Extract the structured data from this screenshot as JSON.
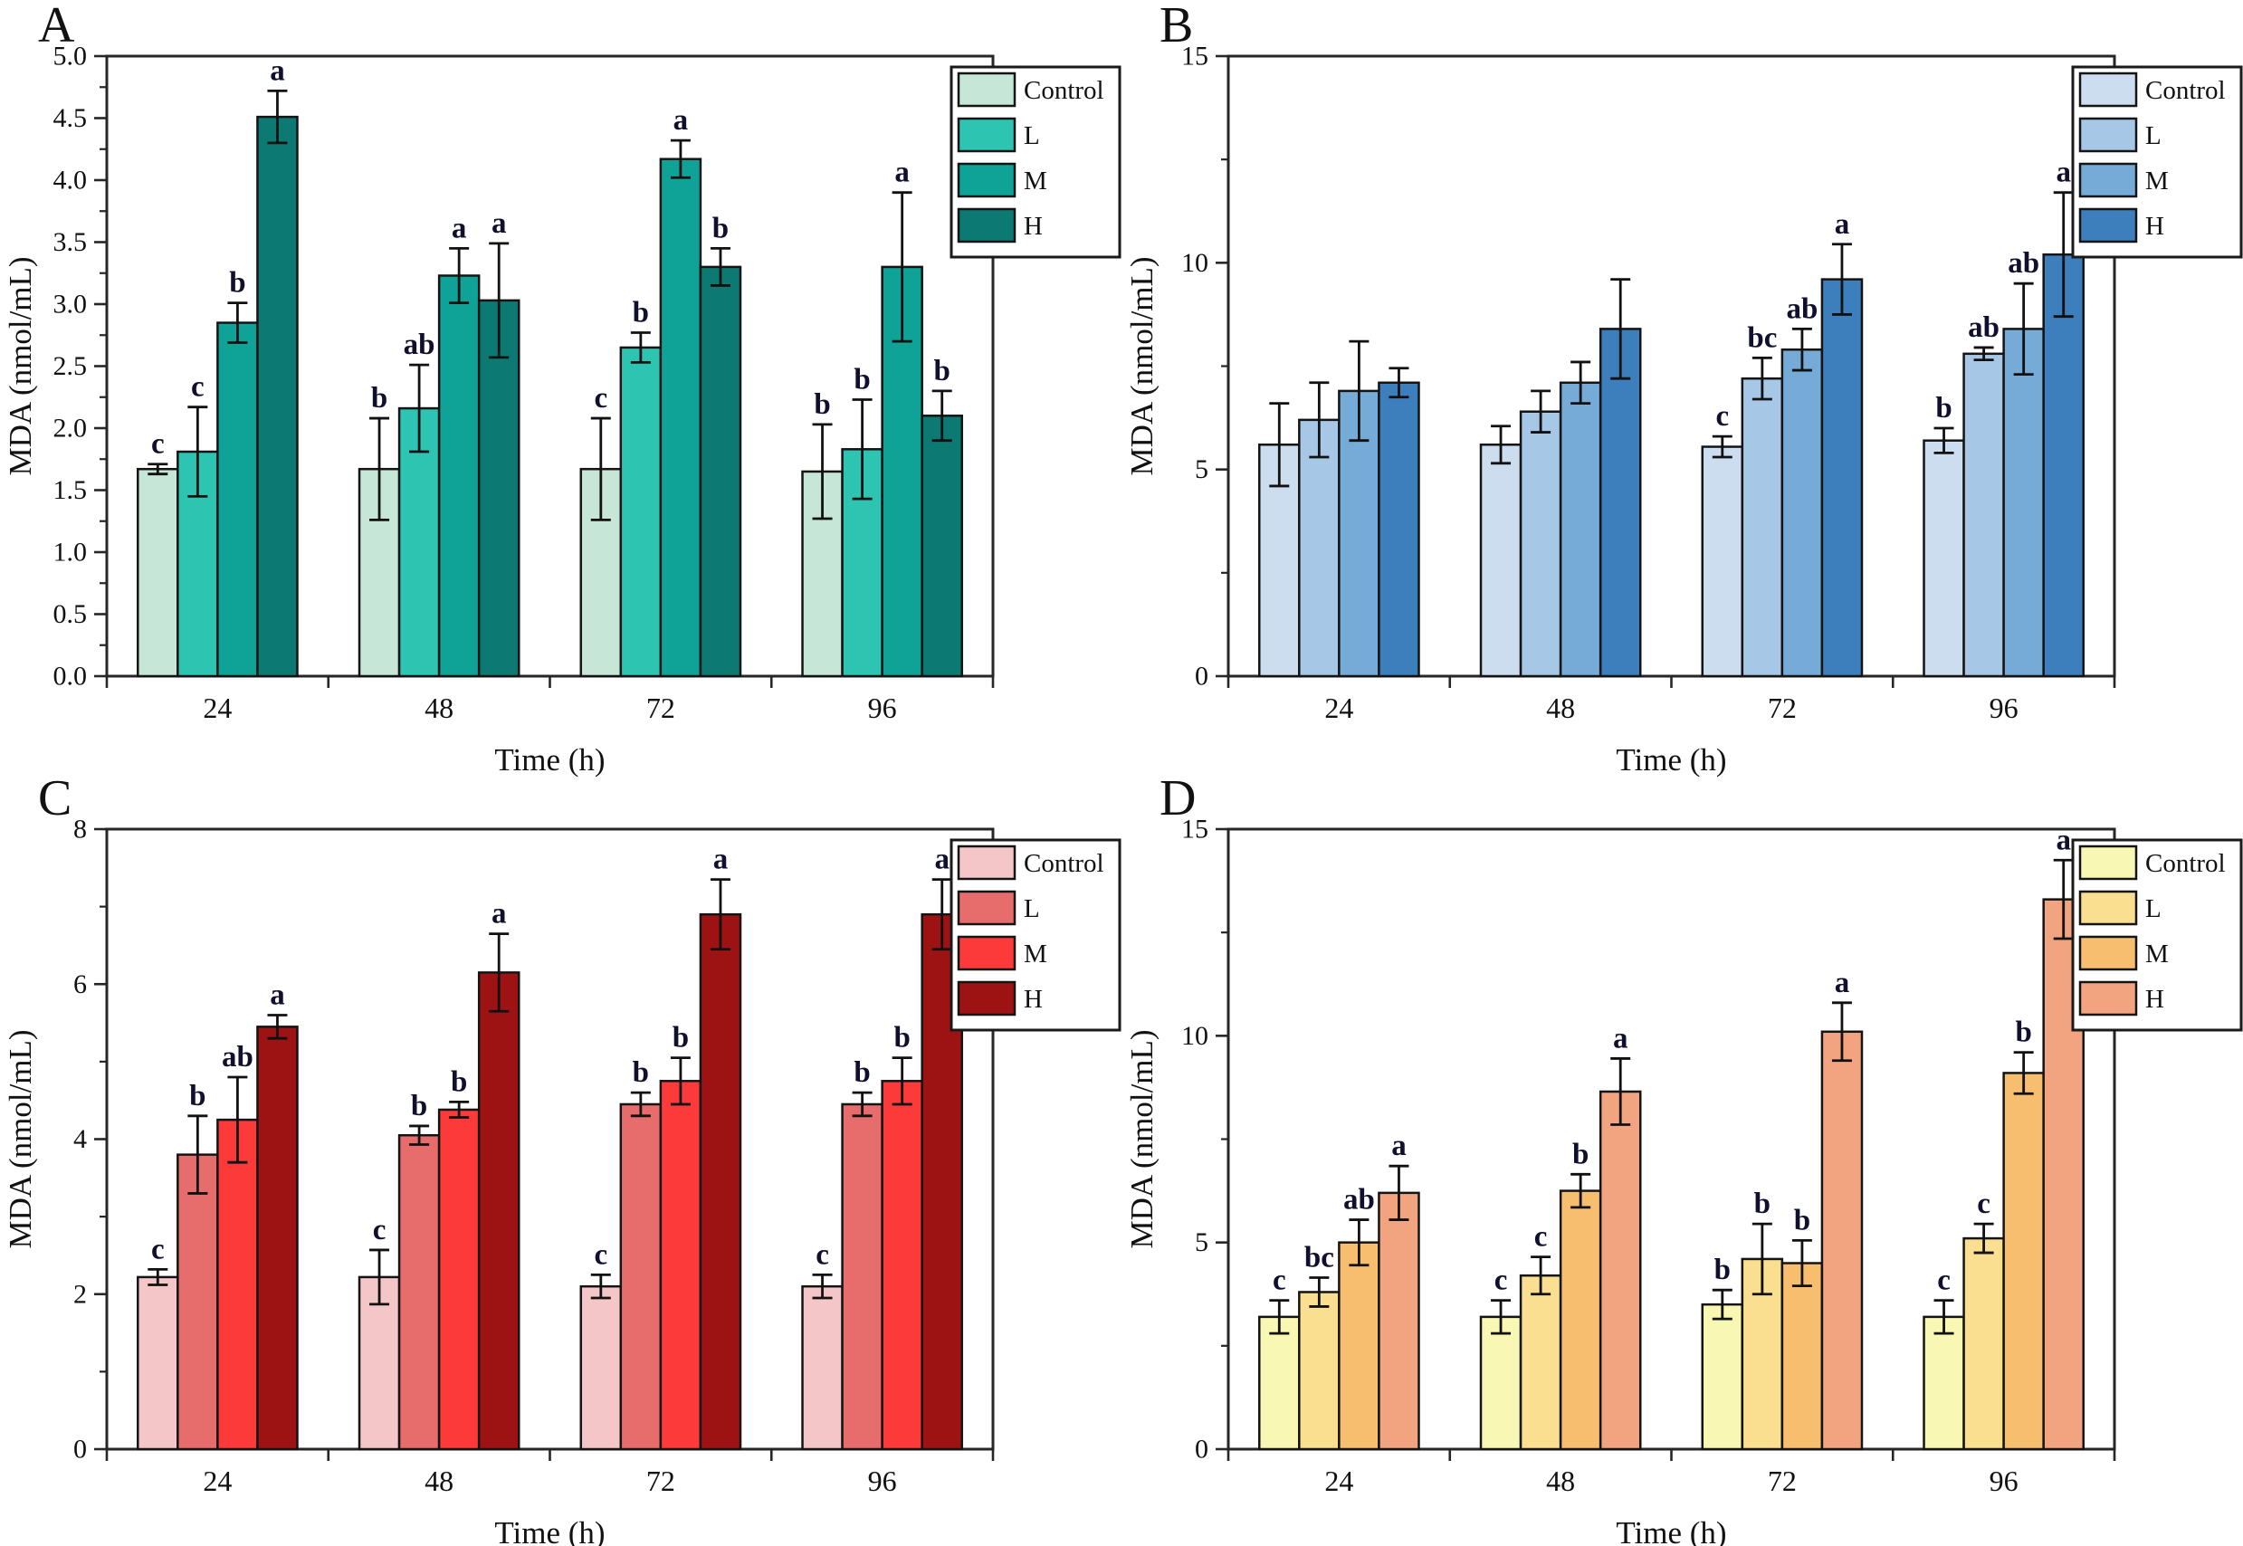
{
  "figure": {
    "name": "MDA four-panel bar figure",
    "xlabel": "Time (h)",
    "ylabel": "MDA (nmol/mL)",
    "legend_labels": [
      "Control",
      "L",
      "M",
      "H"
    ],
    "axis_color": "#262626",
    "sig_letter_color": "#10102e"
  },
  "chart_data": [
    {
      "panel": "A",
      "type": "bar",
      "title": "A",
      "xlabel": "Time (h)",
      "ylabel": "MDA (nmol/mL)",
      "categories": [
        "24",
        "48",
        "72",
        "96"
      ],
      "ylim": [
        0,
        5
      ],
      "ymajor": 0.5,
      "ydecimals": 1,
      "grid": false,
      "legend_position": "top-right",
      "series": [
        {
          "name": "Control",
          "color": "#c6e6d7",
          "values": [
            1.67,
            1.67,
            1.67,
            1.65
          ],
          "errors": [
            0.04,
            0.41,
            0.41,
            0.38
          ],
          "letters": [
            "c",
            "b",
            "c",
            "b"
          ]
        },
        {
          "name": "L",
          "color": "#2ec4b2",
          "values": [
            1.81,
            2.16,
            2.65,
            1.83
          ],
          "errors": [
            0.36,
            0.35,
            0.12,
            0.4
          ],
          "letters": [
            "c",
            "ab",
            "b",
            "b"
          ]
        },
        {
          "name": "M",
          "color": "#0ea396",
          "values": [
            2.85,
            3.23,
            4.17,
            3.3
          ],
          "errors": [
            0.16,
            0.22,
            0.15,
            0.6
          ],
          "letters": [
            "b",
            "a",
            "a",
            "a"
          ]
        },
        {
          "name": "H",
          "color": "#0c7a72",
          "values": [
            4.51,
            3.03,
            3.3,
            2.1
          ],
          "errors": [
            0.21,
            0.46,
            0.15,
            0.2
          ],
          "letters": [
            "a",
            "a",
            "b",
            "b"
          ]
        }
      ]
    },
    {
      "panel": "B",
      "type": "bar",
      "title": "B",
      "xlabel": "Time (h)",
      "ylabel": "MDA (nmol/mL)",
      "categories": [
        "24",
        "48",
        "72",
        "96"
      ],
      "ylim": [
        0,
        15
      ],
      "ymajor": 5,
      "ydecimals": 0,
      "grid": false,
      "legend_position": "top-right",
      "series": [
        {
          "name": "Control",
          "color": "#cdddf0",
          "values": [
            5.6,
            5.6,
            5.55,
            5.7
          ],
          "errors": [
            1.0,
            0.45,
            0.25,
            0.3
          ],
          "letters": [
            "",
            "",
            "c",
            "b"
          ]
        },
        {
          "name": "L",
          "color": "#a6c8e6",
          "values": [
            6.2,
            6.4,
            7.2,
            7.8
          ],
          "errors": [
            0.9,
            0.5,
            0.5,
            0.15
          ],
          "letters": [
            "",
            "",
            "bc",
            "ab"
          ]
        },
        {
          "name": "M",
          "color": "#76abd7",
          "values": [
            6.9,
            7.1,
            7.9,
            8.4
          ],
          "errors": [
            1.2,
            0.5,
            0.5,
            1.1
          ],
          "letters": [
            "",
            "",
            "ab",
            "ab"
          ]
        },
        {
          "name": "H",
          "color": "#3d7fbd",
          "values": [
            7.1,
            8.4,
            9.6,
            10.2
          ],
          "errors": [
            0.35,
            1.2,
            0.85,
            1.5
          ],
          "letters": [
            "",
            "",
            "a",
            "a"
          ]
        }
      ]
    },
    {
      "panel": "C",
      "type": "bar",
      "title": "C",
      "xlabel": "Time (h)",
      "ylabel": "MDA (nmol/mL)",
      "categories": [
        "24",
        "48",
        "72",
        "96"
      ],
      "ylim": [
        0,
        8
      ],
      "ymajor": 2,
      "ydecimals": 0,
      "grid": false,
      "legend_position": "top-right",
      "series": [
        {
          "name": "Control",
          "color": "#f5c6c8",
          "values": [
            2.22,
            2.22,
            2.1,
            2.1
          ],
          "errors": [
            0.1,
            0.35,
            0.15,
            0.15
          ],
          "letters": [
            "c",
            "c",
            "c",
            "c"
          ]
        },
        {
          "name": "L",
          "color": "#e76c6c",
          "values": [
            3.8,
            4.05,
            4.45,
            4.45
          ],
          "errors": [
            0.5,
            0.12,
            0.15,
            0.15
          ],
          "letters": [
            "b",
            "b",
            "b",
            "b"
          ]
        },
        {
          "name": "M",
          "color": "#fc3a3a",
          "values": [
            4.25,
            4.38,
            4.75,
            4.75
          ],
          "errors": [
            0.55,
            0.1,
            0.3,
            0.3
          ],
          "letters": [
            "ab",
            "b",
            "b",
            "b"
          ]
        },
        {
          "name": "H",
          "color": "#9d1314",
          "values": [
            5.45,
            6.15,
            6.9,
            6.9
          ],
          "errors": [
            0.15,
            0.5,
            0.45,
            0.45
          ],
          "letters": [
            "a",
            "a",
            "a",
            "a"
          ]
        }
      ]
    },
    {
      "panel": "D",
      "type": "bar",
      "title": "D",
      "xlabel": "Time (h)",
      "ylabel": "MDA (nmol/mL)",
      "categories": [
        "24",
        "48",
        "72",
        "96"
      ],
      "ylim": [
        0,
        15
      ],
      "ymajor": 5,
      "ydecimals": 0,
      "grid": false,
      "legend_position": "top-right",
      "series": [
        {
          "name": "Control",
          "color": "#f8f7b3",
          "values": [
            3.2,
            3.2,
            3.5,
            3.2
          ],
          "errors": [
            0.4,
            0.4,
            0.35,
            0.4
          ],
          "letters": [
            "c",
            "c",
            "b",
            "c"
          ]
        },
        {
          "name": "L",
          "color": "#fadf90",
          "values": [
            3.8,
            4.2,
            4.6,
            5.1
          ],
          "errors": [
            0.35,
            0.45,
            0.85,
            0.35
          ],
          "letters": [
            "bc",
            "c",
            "b",
            "c"
          ]
        },
        {
          "name": "M",
          "color": "#f8be6f",
          "values": [
            5.0,
            6.25,
            4.5,
            9.1
          ],
          "errors": [
            0.55,
            0.4,
            0.55,
            0.5
          ],
          "letters": [
            "ab",
            "b",
            "b",
            "b"
          ]
        },
        {
          "name": "H",
          "color": "#f2a480",
          "values": [
            6.2,
            8.65,
            10.1,
            13.3
          ],
          "errors": [
            0.65,
            0.8,
            0.7,
            0.95
          ],
          "letters": [
            "a",
            "a",
            "a",
            "a"
          ]
        }
      ]
    }
  ]
}
